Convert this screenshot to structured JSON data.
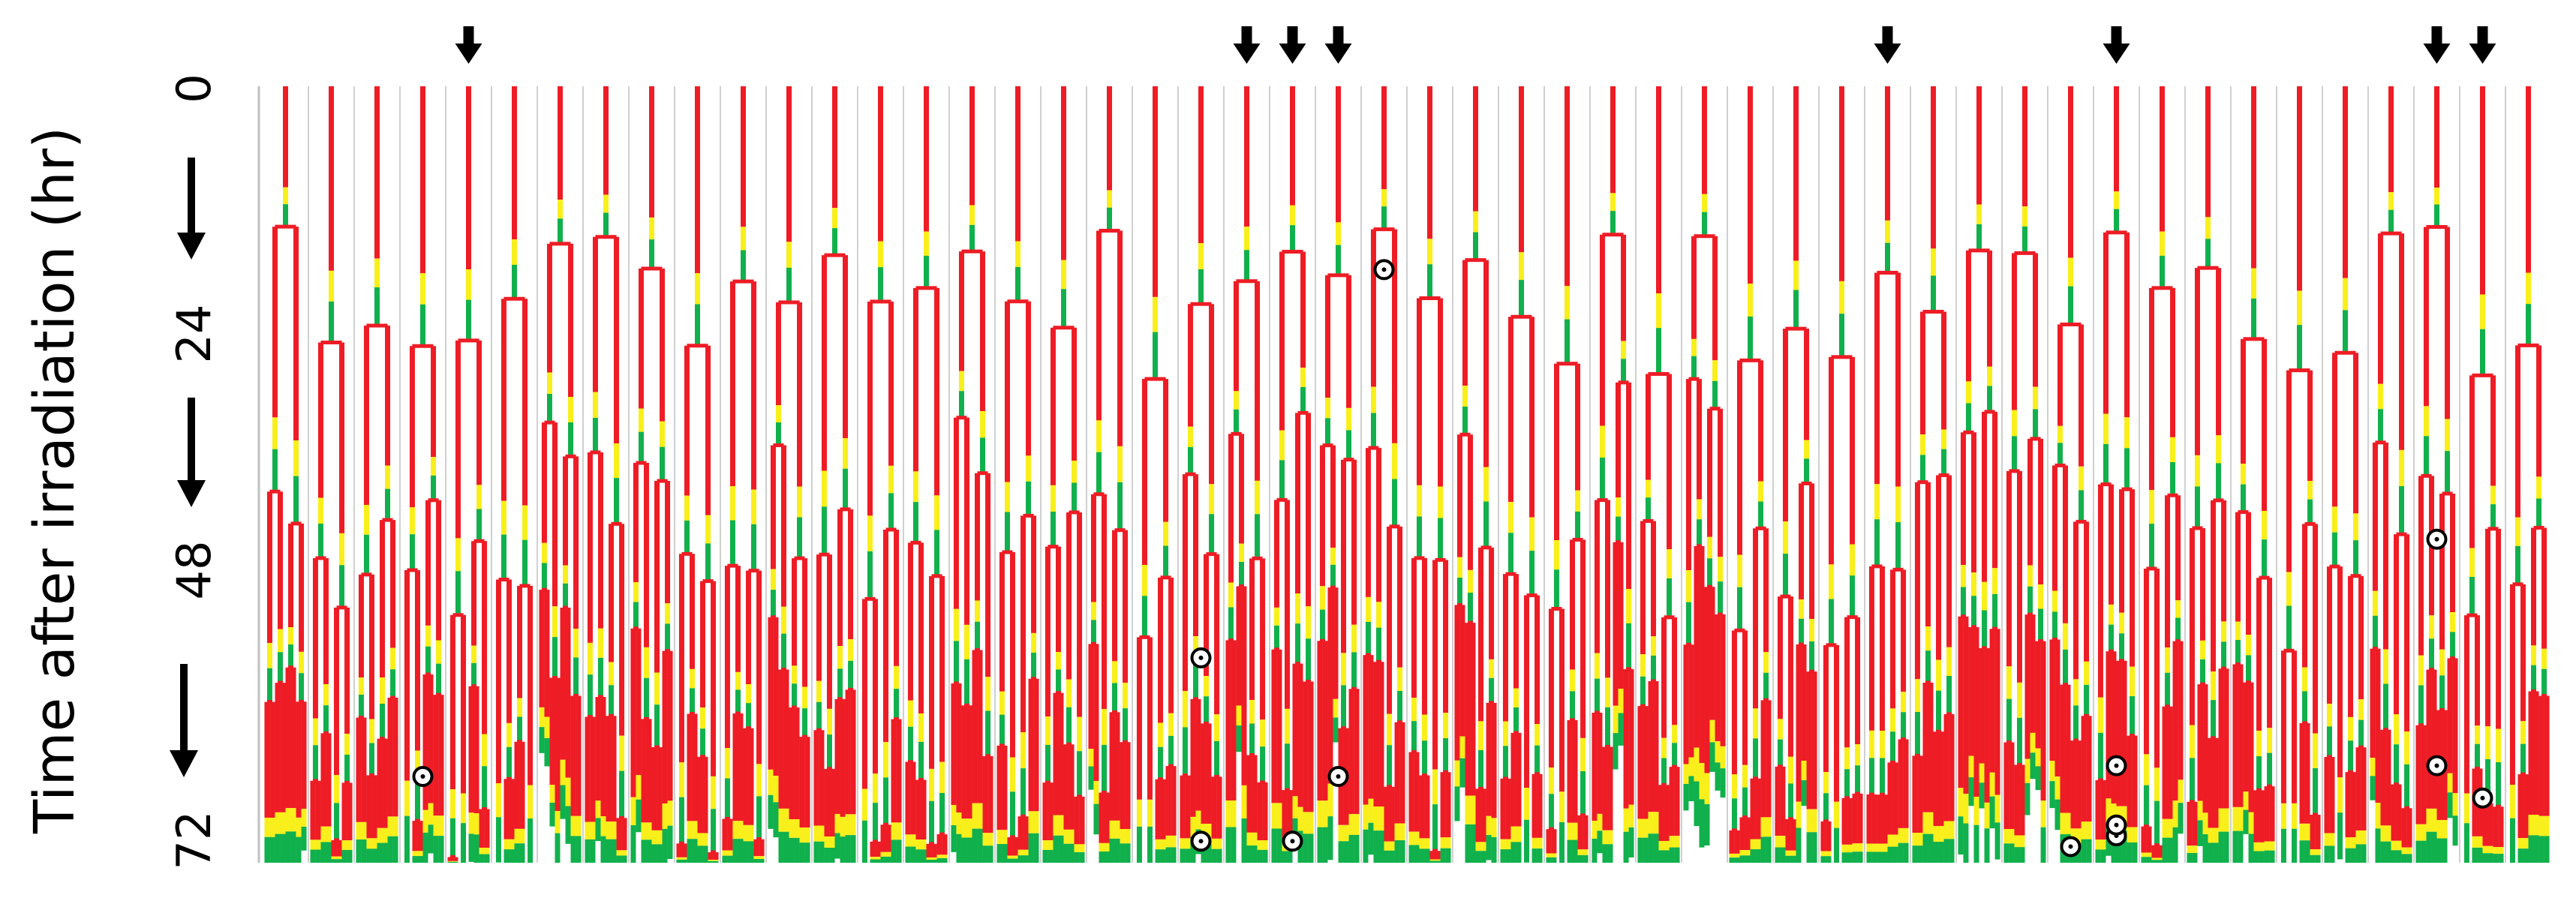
{
  "chart_data": {
    "type": "lineage-tree",
    "ylabel": "Time after irradiation (hr)",
    "y_ticks": [
      "0",
      "24",
      "48",
      "72"
    ],
    "y_range_hr": [
      0,
      72
    ],
    "num_lineages": 50,
    "colors": {
      "red": "#ee1c25",
      "yellow": "#f9ef1b",
      "green": "#10b04c",
      "divider": "#d0d0d0",
      "marker": "#000000"
    },
    "legend": "none",
    "arrow_lineages": [
      4,
      21,
      22,
      23,
      35,
      40,
      47,
      48
    ],
    "death_markers": [
      {
        "lineage": 3,
        "time_hr": 64
      },
      {
        "lineage": 20,
        "time_hr": 53
      },
      {
        "lineage": 20,
        "time_hr": 70
      },
      {
        "lineage": 22,
        "time_hr": 70
      },
      {
        "lineage": 23,
        "time_hr": 64
      },
      {
        "lineage": 24,
        "time_hr": 17
      },
      {
        "lineage": 39,
        "time_hr": 70.5
      },
      {
        "lineage": 40,
        "time_hr": 69.5
      },
      {
        "lineage": 40,
        "time_hr": 68.5
      },
      {
        "lineage": 40,
        "time_hr": 63
      },
      {
        "lineage": 47,
        "time_hr": 63
      },
      {
        "lineage": 47,
        "time_hr": 42
      },
      {
        "lineage": 48,
        "time_hr": 66
      }
    ]
  }
}
